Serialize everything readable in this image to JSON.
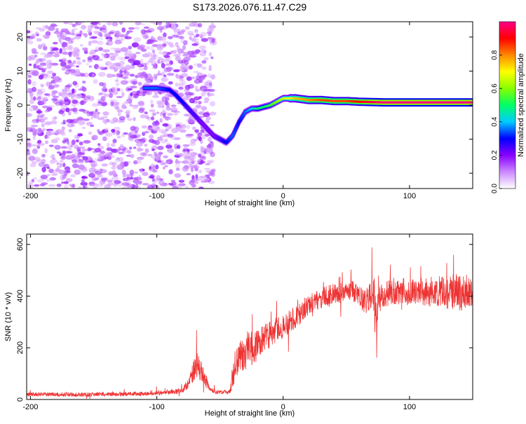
{
  "figure_title": "S173.2026.076.11.47.C29",
  "chart_data": [
    {
      "type": "heatmap",
      "xlabel": "Height of straight line (km)",
      "ylabel": "Frequency (Hz)",
      "xlim": [
        -203,
        150
      ],
      "ylim": [
        -24.5,
        24.5
      ],
      "xticks": [
        "-200",
        "-100",
        "0",
        "100"
      ],
      "xtick_values": [
        -200,
        -100,
        0,
        100
      ],
      "yticks": [
        "-20",
        "-10",
        "0",
        "10",
        "20"
      ],
      "ytick_values": [
        -20,
        -10,
        0,
        10,
        20
      ],
      "colorbar": {
        "label": "Normalized spectral amplitude",
        "range": [
          0,
          1
        ],
        "ticks": [
          "0.0",
          "0.2",
          "0.4",
          "0.6",
          "0.8"
        ],
        "tick_values": [
          0,
          0.2,
          0.4,
          0.6,
          0.8
        ],
        "colors": [
          "#ffffff",
          "#cc88ff",
          "#8800ff",
          "#0000ff",
          "#00ccff",
          "#00ff66",
          "#88ff00",
          "#ffff00",
          "#ff8800",
          "#ff0000",
          "#ff0088"
        ]
      },
      "ridge": {
        "x": [
          -110,
          -100,
          -90,
          -85,
          -80,
          -75,
          -70,
          -65,
          -60,
          -55,
          -50,
          -45,
          -40,
          -35,
          -30,
          -25,
          -20,
          -15,
          -10,
          -5,
          0,
          5,
          10,
          20,
          30,
          40,
          50,
          60,
          70,
          80,
          90,
          100,
          110,
          120,
          130,
          140,
          150
        ],
        "freq": [
          5,
          5,
          4.5,
          3,
          1,
          -1,
          -3,
          -5,
          -7,
          -9,
          -10,
          -11,
          -9,
          -5,
          -2,
          -1,
          -1,
          -0.5,
          0,
          1,
          2,
          2,
          2,
          1.5,
          1.5,
          1.2,
          1.2,
          1.0,
          0.9,
          0.8,
          0.8,
          0.8,
          0.8,
          0.8,
          0.8,
          0.8,
          0.8
        ],
        "amplitude": [
          0.35,
          0.35,
          0.3,
          0.3,
          0.3,
          0.25,
          0.25,
          0.2,
          0.2,
          0.2,
          0.25,
          0.3,
          0.35,
          0.3,
          0.35,
          0.4,
          0.5,
          0.5,
          0.55,
          0.6,
          0.65,
          0.7,
          0.75,
          0.8,
          0.85,
          0.85,
          0.85,
          0.9,
          0.95,
          1.0,
          1.0,
          1.0,
          1.0,
          1.0,
          1.0,
          1.0,
          1.0
        ]
      },
      "noise_region_x": [
        -203,
        -55
      ],
      "noise_amplitude_range": [
        0,
        0.15
      ]
    },
    {
      "type": "line",
      "xlabel": "Height of straight line (km)",
      "ylabel": "SNR (10 * v/v)",
      "xlim": [
        -203,
        150
      ],
      "ylim": [
        0,
        640
      ],
      "xticks": [
        "-200",
        "-100",
        "0",
        "100"
      ],
      "xtick_values": [
        -200,
        -100,
        0,
        100
      ],
      "yticks": [
        "0",
        "200",
        "400",
        "600"
      ],
      "ytick_values": [
        0,
        200,
        400,
        600
      ],
      "series": [
        {
          "name": "SNR",
          "color": "#ee3333",
          "x": [
            -203,
            -190,
            -180,
            -170,
            -160,
            -150,
            -140,
            -130,
            -120,
            -110,
            -100,
            -95,
            -90,
            -85,
            -80,
            -75,
            -72,
            -68,
            -65,
            -62,
            -60,
            -58,
            -55,
            -50,
            -45,
            -42,
            -40,
            -38,
            -35,
            -30,
            -25,
            -20,
            -15,
            -10,
            -5,
            0,
            5,
            10,
            15,
            20,
            25,
            30,
            35,
            40,
            45,
            50,
            55,
            60,
            65,
            70,
            72,
            74,
            75,
            76,
            78,
            80,
            85,
            90,
            95,
            100,
            105,
            110,
            115,
            120,
            125,
            130,
            135,
            140,
            145,
            150
          ],
          "y": [
            20,
            20,
            20,
            20,
            18,
            20,
            20,
            20,
            22,
            22,
            25,
            25,
            28,
            30,
            35,
            60,
            100,
            130,
            110,
            80,
            60,
            40,
            30,
            28,
            30,
            30,
            90,
            130,
            160,
            180,
            200,
            210,
            230,
            250,
            270,
            280,
            300,
            320,
            340,
            360,
            380,
            390,
            400,
            410,
            410,
            420,
            420,
            400,
            380,
            400,
            420,
            250,
            380,
            430,
            380,
            400,
            420,
            410,
            420,
            410,
            420,
            410,
            420,
            410,
            420,
            410,
            420,
            410,
            420,
            420
          ],
          "noise": [
            8,
            8,
            8,
            8,
            8,
            8,
            8,
            8,
            8,
            8,
            8,
            8,
            8,
            10,
            12,
            20,
            40,
            50,
            40,
            30,
            20,
            10,
            8,
            8,
            8,
            10,
            50,
            60,
            70,
            70,
            70,
            60,
            60,
            55,
            50,
            45,
            45,
            45,
            40,
            40,
            40,
            40,
            40,
            40,
            40,
            40,
            40,
            40,
            50,
            60,
            90,
            150,
            90,
            80,
            60,
            50,
            50,
            50,
            50,
            50,
            50,
            50,
            60,
            60,
            60,
            60,
            70,
            70,
            70,
            60
          ]
        }
      ]
    }
  ]
}
